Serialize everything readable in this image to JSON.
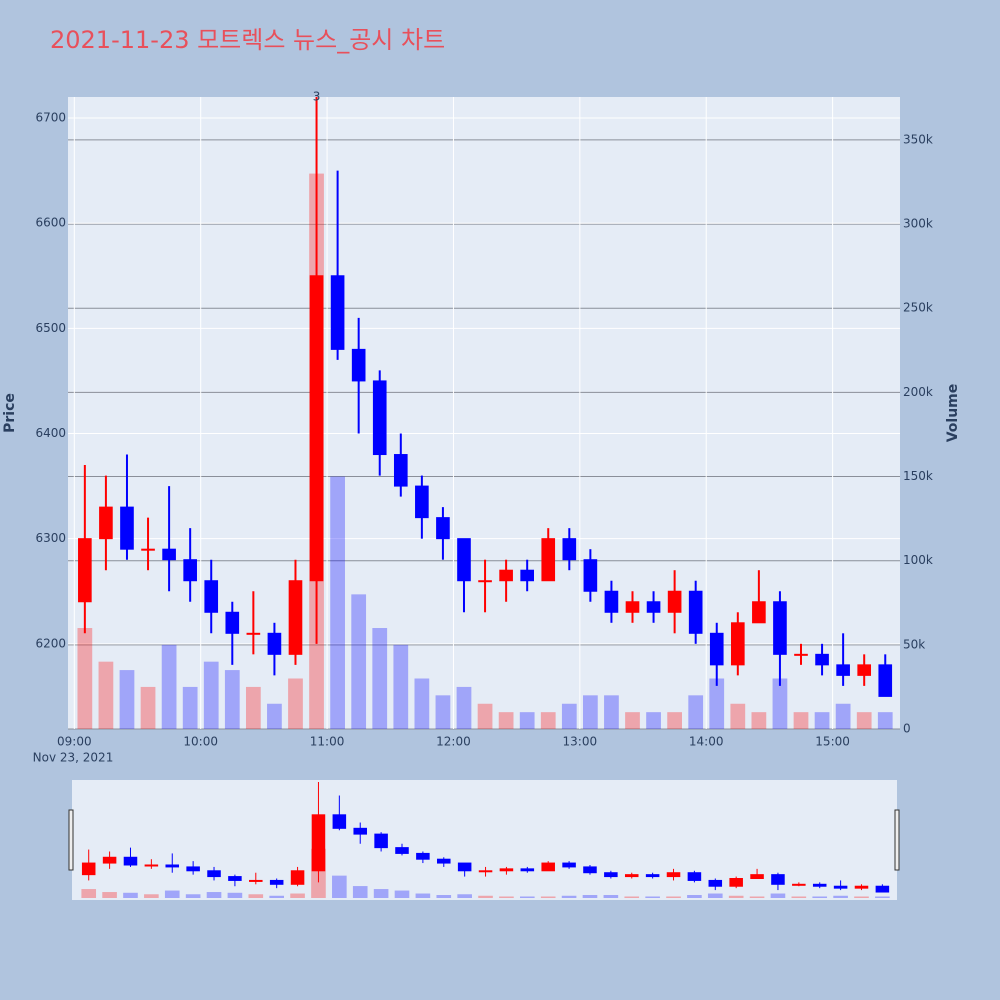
{
  "chart_data": {
    "type": "candlestick",
    "title": "2021-11-23 모트렉스 뉴스_공시 차트",
    "y_label": "Price",
    "y2_label": "Volume",
    "x_date_label": "Nov 23, 2021",
    "x": [
      "09:00",
      "09:10",
      "09:20",
      "09:30",
      "09:40",
      "09:50",
      "10:00",
      "10:10",
      "10:20",
      "10:30",
      "10:40",
      "10:50",
      "11:00",
      "11:10",
      "11:20",
      "11:30",
      "11:40",
      "11:50",
      "12:00",
      "12:10",
      "12:20",
      "12:30",
      "12:40",
      "12:50",
      "13:00",
      "13:10",
      "13:20",
      "13:30",
      "13:40",
      "13:50",
      "14:00",
      "14:10",
      "14:20",
      "14:30",
      "14:40",
      "14:50",
      "15:00",
      "15:10",
      "15:20"
    ],
    "open": [
      6240,
      6300,
      6330,
      6290,
      6290,
      6280,
      6260,
      6230,
      6210,
      6210,
      6190,
      6260,
      6550,
      6480,
      6450,
      6380,
      6350,
      6320,
      6300,
      6260,
      6260,
      6270,
      6260,
      6300,
      6280,
      6250,
      6230,
      6240,
      6230,
      6250,
      6210,
      6180,
      6220,
      6240,
      6190,
      6190,
      6180,
      6170,
      6180
    ],
    "high": [
      6370,
      6360,
      6380,
      6320,
      6350,
      6310,
      6280,
      6240,
      6250,
      6220,
      6280,
      6720,
      6650,
      6510,
      6460,
      6400,
      6360,
      6330,
      6300,
      6280,
      6280,
      6280,
      6310,
      6310,
      6290,
      6260,
      6250,
      6250,
      6270,
      6260,
      6220,
      6230,
      6270,
      6250,
      6200,
      6200,
      6210,
      6190,
      6190
    ],
    "low": [
      6210,
      6270,
      6280,
      6270,
      6250,
      6240,
      6210,
      6180,
      6190,
      6170,
      6180,
      6200,
      6470,
      6400,
      6360,
      6340,
      6300,
      6280,
      6230,
      6230,
      6240,
      6250,
      6260,
      6270,
      6240,
      6220,
      6220,
      6220,
      6210,
      6200,
      6160,
      6170,
      6220,
      6160,
      6180,
      6170,
      6160,
      6160,
      6150
    ],
    "close": [
      6300,
      6330,
      6290,
      6290,
      6280,
      6260,
      6230,
      6210,
      6210,
      6190,
      6260,
      6550,
      6480,
      6450,
      6380,
      6350,
      6320,
      6300,
      6260,
      6260,
      6270,
      6260,
      6300,
      6280,
      6250,
      6230,
      6240,
      6230,
      6250,
      6210,
      6180,
      6220,
      6240,
      6190,
      6190,
      6180,
      6170,
      6180,
      6150
    ],
    "volume": [
      60000,
      40000,
      35000,
      25000,
      50000,
      25000,
      40000,
      35000,
      25000,
      15000,
      30000,
      330000,
      150000,
      80000,
      60000,
      50000,
      30000,
      20000,
      25000,
      15000,
      10000,
      10000,
      10000,
      15000,
      20000,
      20000,
      10000,
      10000,
      10000,
      20000,
      30000,
      15000,
      10000,
      30000,
      10000,
      10000,
      15000,
      10000,
      10000
    ],
    "increasing_color": "#ff0000",
    "decreasing_color": "#0000ff",
    "xlim": [
      "08:57",
      "15:32"
    ],
    "xticks": [
      "09:00",
      "10:00",
      "11:00",
      "12:00",
      "13:00",
      "14:00",
      "15:00"
    ],
    "ylim": [
      6119,
      6720
    ],
    "yticks": [
      6200,
      6300,
      6400,
      6500,
      6600,
      6700
    ],
    "y2lim": [
      0,
      375500
    ],
    "y2ticks": [
      0,
      {
        "value": 50000,
        "label": "50k"
      },
      {
        "value": 100000,
        "label": "100k"
      },
      {
        "value": 150000,
        "label": "150k"
      },
      {
        "value": 200000,
        "label": "200k"
      },
      {
        "value": 250000,
        "label": "250k"
      },
      {
        "value": 300000,
        "label": "300k"
      },
      {
        "value": 350000,
        "label": "350k"
      }
    ],
    "annotation": {
      "text": "3",
      "x": "10:50"
    },
    "grid": true,
    "range_slider": true
  }
}
